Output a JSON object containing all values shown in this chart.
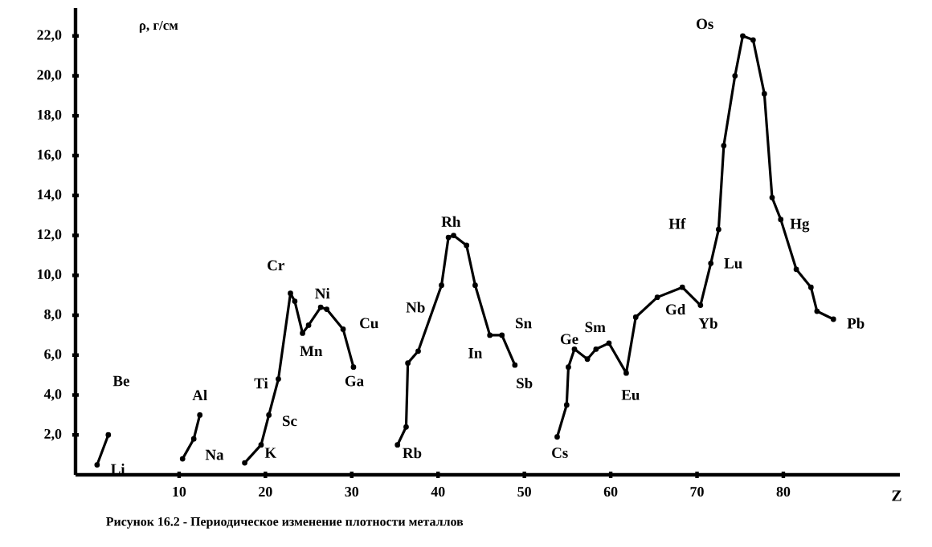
{
  "chart_data": {
    "type": "line",
    "ylabel": "ρ, г/см",
    "xlabel": "Z",
    "xlim": [
      -2,
      93.5
    ],
    "ylim": [
      0,
      23.4
    ],
    "xticks": [
      10,
      20,
      30,
      40,
      50,
      60,
      70,
      80
    ],
    "yticks": [
      {
        "value": 2,
        "label": "2,0"
      },
      {
        "value": 4,
        "label": "4,0"
      },
      {
        "value": 6,
        "label": "6,0"
      },
      {
        "value": 8,
        "label": "8,0"
      },
      {
        "value": 10,
        "label": "10,0"
      },
      {
        "value": 12,
        "label": "12,0"
      },
      {
        "value": 14,
        "label": "14,0"
      },
      {
        "value": 16,
        "label": "16,0"
      },
      {
        "value": 18,
        "label": "18,0"
      },
      {
        "value": 20,
        "label": "20,0"
      },
      {
        "value": 22,
        "label": "22,0"
      }
    ],
    "marker": "circle",
    "line_style": "solid",
    "series": [
      {
        "color": "#000000",
        "x": [
          0.5,
          1.8,
          6,
          10.4,
          11.7,
          12.4,
          15,
          17.6,
          19.5,
          20.4,
          21.5,
          22.9,
          23.4,
          24.3,
          25.0,
          26.4,
          27.1,
          29,
          30.2,
          33,
          35.3,
          36.3,
          36.5,
          37.7,
          40.4,
          41.2,
          41.8,
          43.3,
          44.3,
          46,
          47.4,
          48.9,
          51,
          53.8,
          54.9,
          55.1,
          55.8,
          57.3,
          58.3,
          59.8,
          61.8,
          62.9,
          65.4,
          68.3,
          70.4,
          71.6,
          72.5,
          73.1,
          74.4,
          75.3,
          76.5,
          77.8,
          78.7,
          79.7,
          81.5,
          83.2,
          83.9,
          85.8
        ],
        "values": [
          0.5,
          2.0,
          null,
          0.8,
          1.8,
          3.0,
          null,
          0.6,
          1.5,
          3.0,
          4.8,
          9.1,
          8.7,
          7.1,
          7.5,
          8.4,
          8.3,
          7.3,
          5.4,
          null,
          1.5,
          2.4,
          5.6,
          6.2,
          9.5,
          11.9,
          12.0,
          11.5,
          9.5,
          7.0,
          7.0,
          5.5,
          null,
          1.9,
          3.5,
          5.4,
          6.3,
          5.8,
          6.3,
          6.6,
          5.1,
          7.9,
          8.9,
          9.4,
          8.5,
          10.6,
          12.3,
          16.5,
          20.0,
          22.0,
          21.8,
          19.1,
          13.9,
          12.8,
          10.3,
          9.4,
          8.2,
          7.8
        ]
      }
    ],
    "annotations": [
      "Be",
      "Li",
      "Al",
      "Na",
      "Ti",
      "Sc",
      "K",
      "Cr",
      "Ni",
      "Mn",
      "Cu",
      "Ga",
      "Nb",
      "Rh",
      "In",
      "Sn",
      "Sb",
      "Rb",
      "Cs",
      "Ge",
      "Sm",
      "Eu",
      "Gd",
      "Hf",
      "Yb",
      "Lu",
      "Os",
      "Hg",
      "Pb",
      "Рисунок 16.2 - Периодическое изменение плотности металлов"
    ]
  }
}
